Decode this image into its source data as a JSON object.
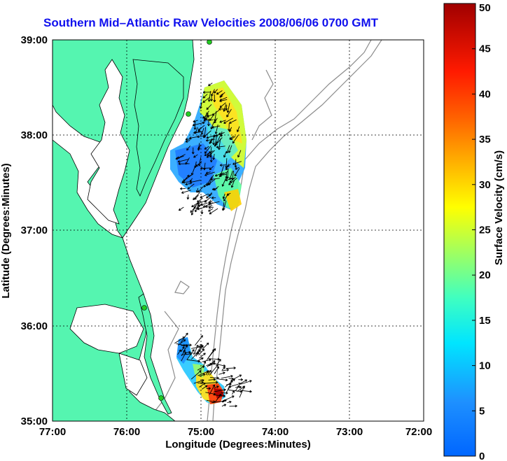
{
  "map": {
    "title": "Southern Mid–Atlantic Raw Velocities 2008/06/06 0700 GMT",
    "xlabel": "Longitude (Degrees:Minutes)",
    "ylabel": "Latitude (Degrees:Minutes)",
    "x_ticks": [
      "77:00",
      "76:00",
      "75:00",
      "74:00",
      "73:00",
      "72:00"
    ],
    "y_ticks": [
      "39:00",
      "38:00",
      "37:00",
      "36:00",
      "35:00"
    ],
    "land_color": "#55f5b0",
    "coast_color": "#000000",
    "bathymetry_color": "#8c8c8c",
    "station_color": "#22cc22"
  },
  "colorbar": {
    "label": "Surface Velocity (cm/s)",
    "ticks": [
      "0",
      "5",
      "10",
      "15",
      "20",
      "25",
      "30",
      "35",
      "40",
      "45",
      "50"
    ],
    "min": 0,
    "max": 50,
    "colormap": "jet"
  }
}
